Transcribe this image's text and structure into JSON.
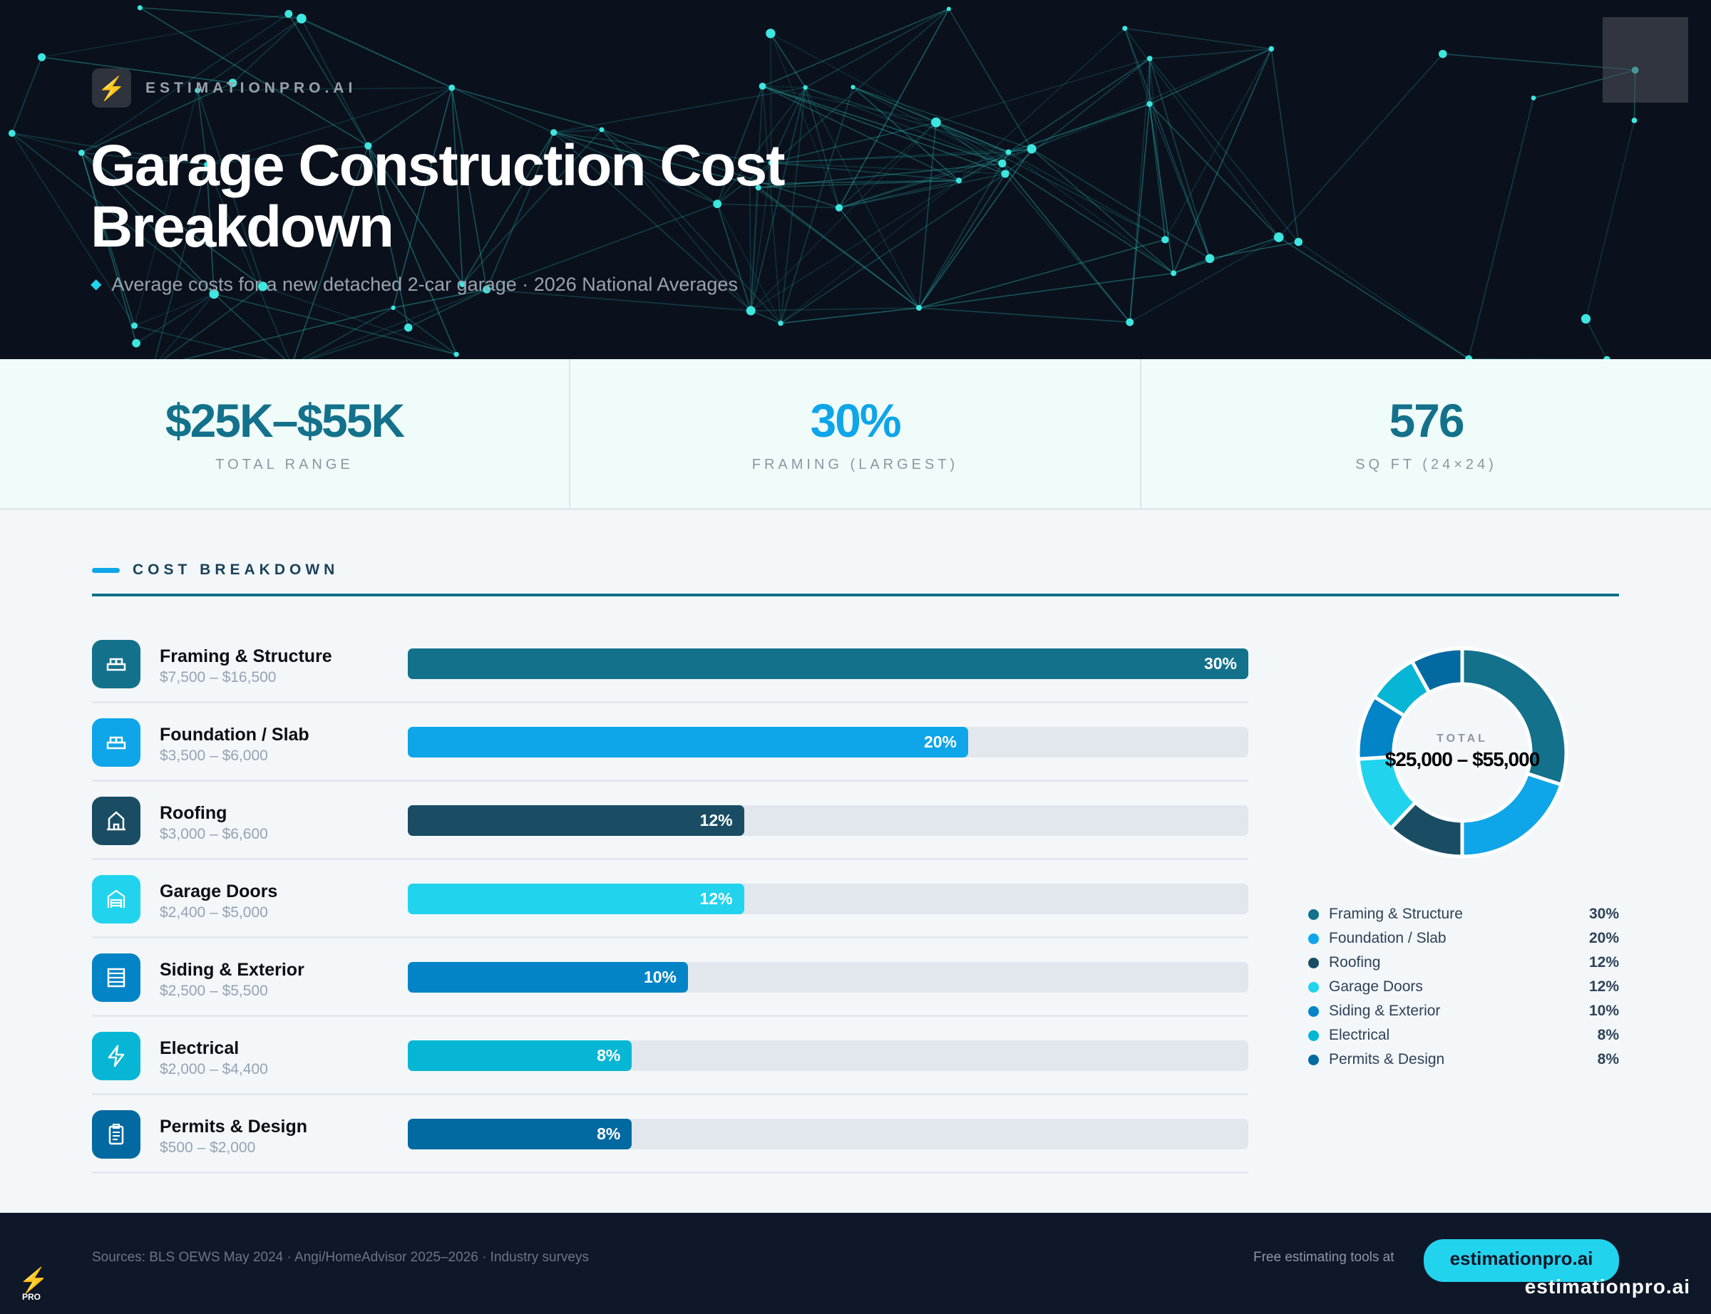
{
  "header": {
    "brand": "ESTIMATIONPRO.AI",
    "logo_icon": "lightning-bolt-icon",
    "title": "Garage Construction Cost Breakdown",
    "subtitle": "Average costs for a new detached 2-car garage · 2026 National Averages"
  },
  "stats": [
    {
      "value": "$25K–$55K",
      "label": "TOTAL RANGE",
      "color": "#13718b"
    },
    {
      "value": "30%",
      "label": "FRAMING (LARGEST)",
      "color": "#0ea5e9"
    },
    {
      "value": "576",
      "label": "SQ FT (24×24)",
      "color": "#13718b"
    }
  ],
  "section_title": "COST BREAKDOWN",
  "chart_data": {
    "type": "bar",
    "categories": [
      "Framing & Structure",
      "Foundation / Slab",
      "Roofing",
      "Garage Doors",
      "Siding & Exterior",
      "Electrical",
      "Permits & Design"
    ],
    "values": [
      30,
      20,
      12,
      12,
      10,
      8,
      8
    ],
    "unit": "%",
    "ranges": [
      "$7,500 – $16,500",
      "$3,500 – $6,000",
      "$3,000 – $6,600",
      "$2,400 – $5,000",
      "$2,500 – $5,500",
      "$2,000 – $4,400",
      "$500 – $2,000"
    ],
    "labels": [
      "30%",
      "20%",
      "12%",
      "12%",
      "10%",
      "8%",
      "8%"
    ],
    "colors": [
      "#13718b",
      "#0ea5e9",
      "#1a4d63",
      "#22d3ee",
      "#0284c7",
      "#06b6d4",
      "#0369a1"
    ],
    "icons": [
      "foundation-blocks-icon",
      "foundation-blocks-icon",
      "house-icon",
      "garage-door-icon",
      "siding-panel-icon",
      "lightning-icon",
      "clipboard-icon"
    ],
    "donut": {
      "type": "pie",
      "style": "donut",
      "center_label": "TOTAL",
      "center_value": "$25,000 – $55,000"
    }
  },
  "footer": {
    "sources": "Sources: BLS OEWS May 2024 · Angi/HomeAdvisor 2025–2026 · Industry surveys",
    "free_tools": "Free estimating tools at",
    "cta": "estimationpro.ai",
    "logo_text": "PRO",
    "site": "estimationpro.ai"
  }
}
